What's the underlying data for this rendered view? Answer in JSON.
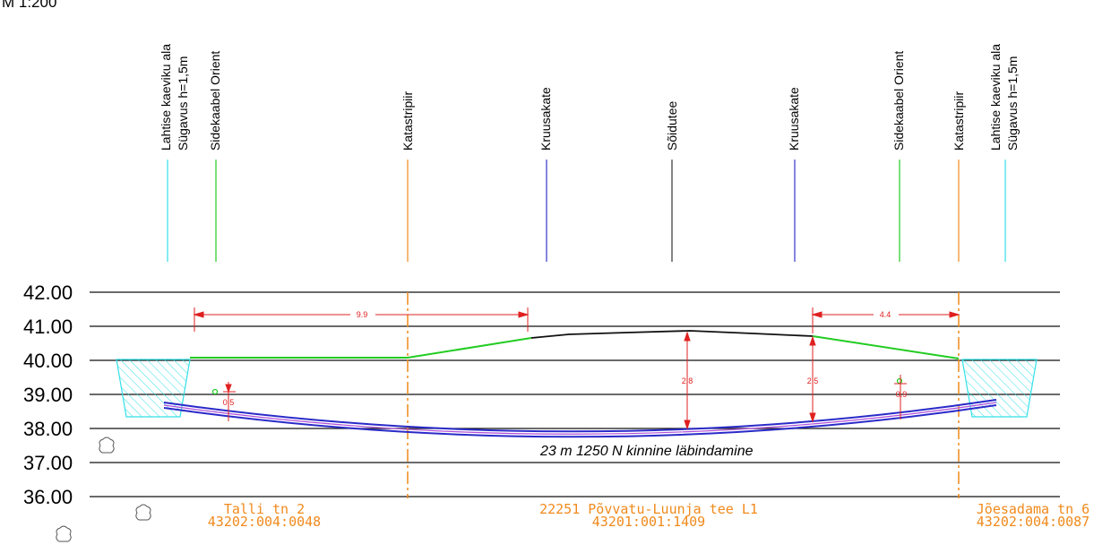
{
  "scale_label": "M 1:200",
  "elevation_labels": [
    "42.00",
    "41.00",
    "40.00",
    "39.00",
    "38.00",
    "37.00",
    "36.00"
  ],
  "utility_labels": {
    "trench_left_1": "Lahtise kaeviku ala",
    "trench_left_2": "Sügavus h=1,5m",
    "cable_left": "Sidekaabel Orient",
    "cadastre_left": "Katastripiir",
    "gravel_left": "Kruusakate",
    "roadway": "Sõidutee",
    "gravel_right": "Kruusakate",
    "cable_right": "Sidekaabel Orient",
    "cadastre_right": "Katastripiir",
    "trench_right_1": "Lahtise kaeviku ala",
    "trench_right_2": "Sügavus h=1,5m"
  },
  "dimensions": {
    "left_span": "9.9",
    "right_span": "4.4",
    "left_cover": "0.5",
    "center_depth": "2.8",
    "right_depth": "2.5",
    "right_cover": "0.9"
  },
  "pipe_label": "23 m 1250 N kinnine läbindamine",
  "parcels": {
    "left_name": "Talli tn 2",
    "left_code": "43202:004:0048",
    "center_name": "22251 Põvvatu-Luunja tee L1",
    "center_code": "43201:001:1409",
    "right_name": "Jõesadama tn 6",
    "right_code": "43202:004:0087"
  },
  "colors": {
    "trench": "#33e0e8",
    "cable": "#22cc22",
    "cadastre": "#f08a1c",
    "gravel": "#3333cc",
    "roadway": "#333333",
    "dimension": "#e02020",
    "pipe": "#2a2ac8",
    "grid": "#111111"
  }
}
